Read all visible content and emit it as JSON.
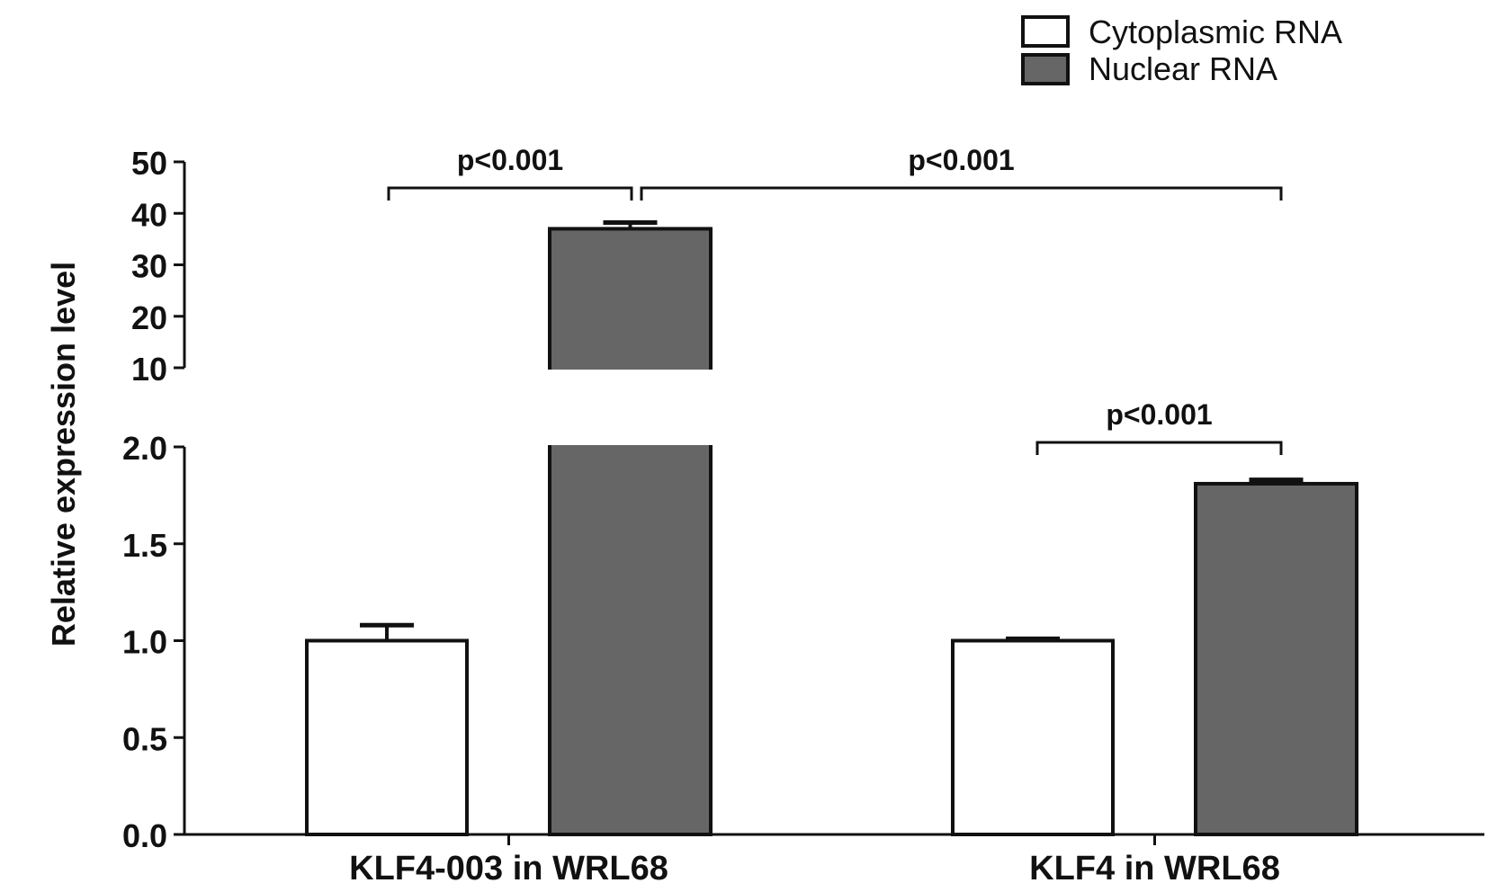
{
  "chart_data": {
    "type": "bar",
    "ylabel": "Relative expression level",
    "broken_axis": {
      "lower_range": [
        0,
        2.0
      ],
      "upper_range": [
        10,
        50
      ],
      "lower_ticks": [
        "0.0",
        "0.5",
        "1.0",
        "1.5",
        "2.0"
      ],
      "upper_ticks": [
        "10",
        "20",
        "30",
        "40",
        "50"
      ]
    },
    "categories": [
      "KLF4-003 in WRL68",
      "KLF4 in WRL68"
    ],
    "series": [
      {
        "name": "Cytoplasmic RNA",
        "values": [
          1.0,
          1.0
        ],
        "errors": [
          0.08,
          0.01
        ],
        "color": "#ffffff"
      },
      {
        "name": "Nuclear RNA",
        "values": [
          37.0,
          1.81
        ],
        "errors": [
          1.2,
          0.02
        ],
        "color": "#666666"
      }
    ],
    "legend": {
      "placement": "top-right",
      "entries": [
        "Cytoplasmic RNA",
        "Nuclear RNA"
      ]
    },
    "annotations": [
      {
        "text": "p<0.001",
        "from": "KLF4-003 in WRL68 / Cytoplasmic RNA",
        "to": "KLF4-003 in WRL68 / Nuclear RNA"
      },
      {
        "text": "p<0.001",
        "from": "KLF4-003 in WRL68 / Nuclear RNA",
        "to": "KLF4 in WRL68 / Nuclear RNA"
      },
      {
        "text": "p<0.001",
        "from": "KLF4 in WRL68 / Cytoplasmic RNA",
        "to": "KLF4 in WRL68 / Nuclear RNA"
      }
    ]
  }
}
